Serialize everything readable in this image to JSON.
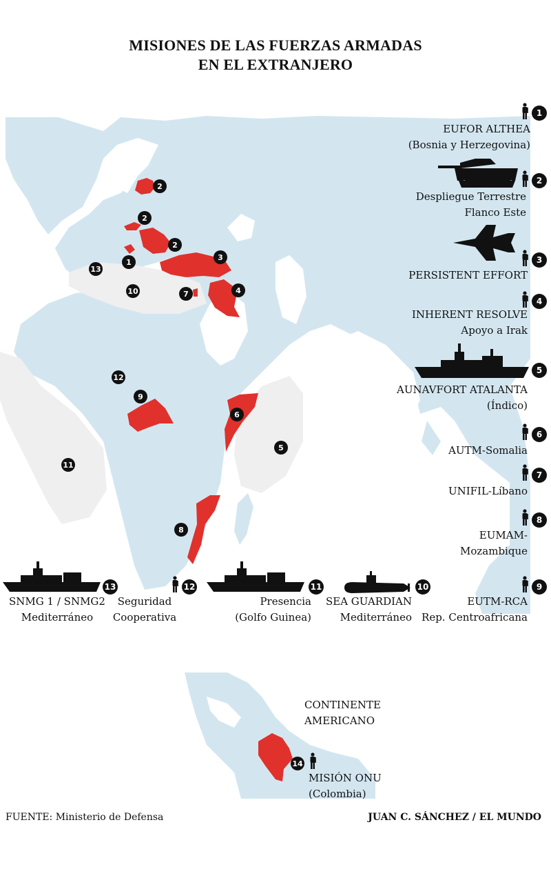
{
  "title": {
    "line1": "MISIONES DE LAS FUERZAS ARMADAS",
    "line2": "EN EL EXTRANJERO"
  },
  "colors": {
    "land": "#d3e6f0",
    "mission_area": "#e0312d",
    "sea_zone": "#efefef",
    "marker": "#111111"
  },
  "missions": [
    {
      "number": "1",
      "line1": "EUFOR ALTHEA",
      "line2": "(Bosnia y Herzegovina)",
      "icon": "soldier-icon"
    },
    {
      "number": "2",
      "line1": "Despliegue Terrestre",
      "line2": "Flanco Este",
      "icon": "tank-icon"
    },
    {
      "number": "3",
      "line1": "PERSISTENT EFFORT",
      "line2": "",
      "icon": "fighter-jet-icon"
    },
    {
      "number": "4",
      "line1": "INHERENT RESOLVE",
      "line2": "Apoyo a Irak",
      "icon": "soldier-icon"
    },
    {
      "number": "5",
      "line1": "AUNAVFORT ATALANTA",
      "line2": "(Índico)",
      "icon": "warship-icon"
    },
    {
      "number": "6",
      "line1": "AUTM-Somalia",
      "line2": "",
      "icon": "soldier-icon"
    },
    {
      "number": "7",
      "line1": "UNIFIL-Líbano",
      "line2": "",
      "icon": "soldier-icon"
    },
    {
      "number": "8",
      "line1": "EUMAM-",
      "line2": "Mozambique",
      "icon": "soldier-icon"
    },
    {
      "number": "9",
      "line1": "EUTM-RCA",
      "line2": "Rep. Centroafricana",
      "icon": "soldier-icon"
    },
    {
      "number": "10",
      "line1": "SEA GUARDIAN",
      "line2": "Mediterráneo",
      "icon": "submarine-icon"
    },
    {
      "number": "11",
      "line1": "Presencia",
      "line2": "(Golfo Guinea)",
      "icon": "warship-icon"
    },
    {
      "number": "12",
      "line1": "Seguridad",
      "line2": "Cooperativa",
      "icon": "soldier-icon"
    },
    {
      "number": "13",
      "line1": "SNMG 1 / SNMG2",
      "line2": "Mediterráneo",
      "icon": "warship-icon"
    },
    {
      "number": "14",
      "line1": "MISIÓN ONU",
      "line2": "(Colombia)",
      "icon": "soldier-icon"
    }
  ],
  "americas": {
    "label_line1": "CONTINENTE",
    "label_line2": "AMERICANO"
  },
  "footer": {
    "source_label": "FUENTE:",
    "source_value": "Ministerio de Defensa",
    "credit": "JUAN C. SÁNCHEZ / EL MUNDO"
  }
}
